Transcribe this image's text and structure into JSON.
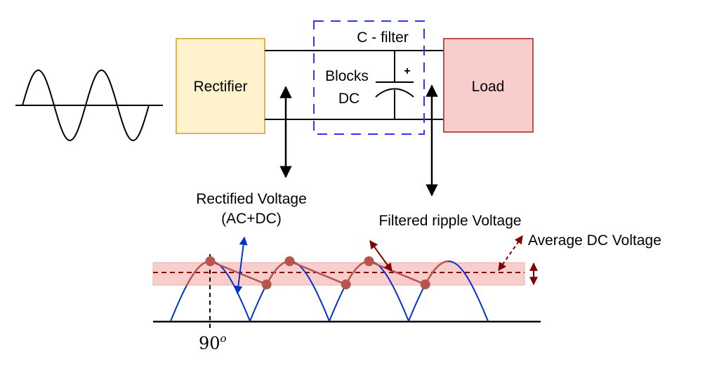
{
  "blocks": {
    "rectifier": "Rectifier",
    "load": "Load",
    "filter_title": "C - filter",
    "blocks_line1": "Blocks",
    "blocks_line2": "DC",
    "cap_polarity": "+"
  },
  "labels": {
    "rectified_line1": "Rectified Voltage",
    "rectified_line2": "(AC+DC)",
    "filtered": "Filtered ripple Voltage",
    "average_dc": "Average DC Voltage",
    "angle": "90",
    "angle_sup": "o"
  },
  "colors": {
    "rectifier_fill": "#fff2cc",
    "rectifier_stroke": "#d6b656",
    "load_fill": "#f8cecc",
    "load_stroke": "#b85450",
    "filter_box": "#3333ff",
    "rectified_wave": "#0033cc",
    "ripple": "#b85450",
    "average_line": "#800000"
  }
}
